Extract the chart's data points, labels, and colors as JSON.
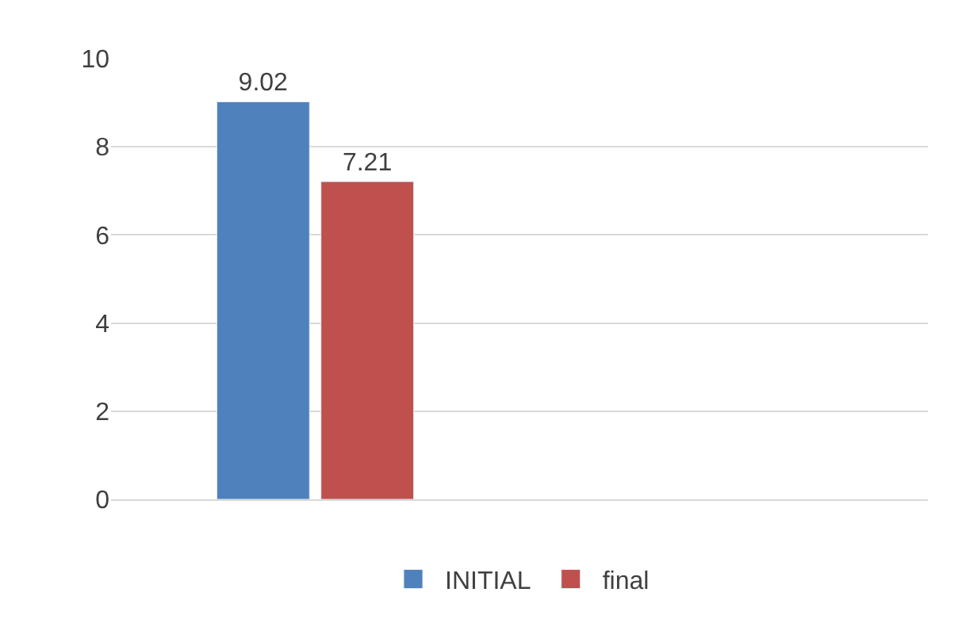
{
  "chart_data": {
    "type": "bar",
    "categories": [
      null,
      null
    ],
    "series": [
      {
        "name": "INITIAL",
        "color": "#4f81bd",
        "values": [
          9.02,
          null
        ]
      },
      {
        "name": "final",
        "color": "#c0504d",
        "values": [
          7.21,
          null
        ]
      }
    ],
    "ylim": [
      0,
      10
    ],
    "yticks": [
      0,
      2,
      4,
      6,
      8,
      10
    ],
    "grid": "y",
    "legend": "bottom",
    "data_labels": true
  }
}
